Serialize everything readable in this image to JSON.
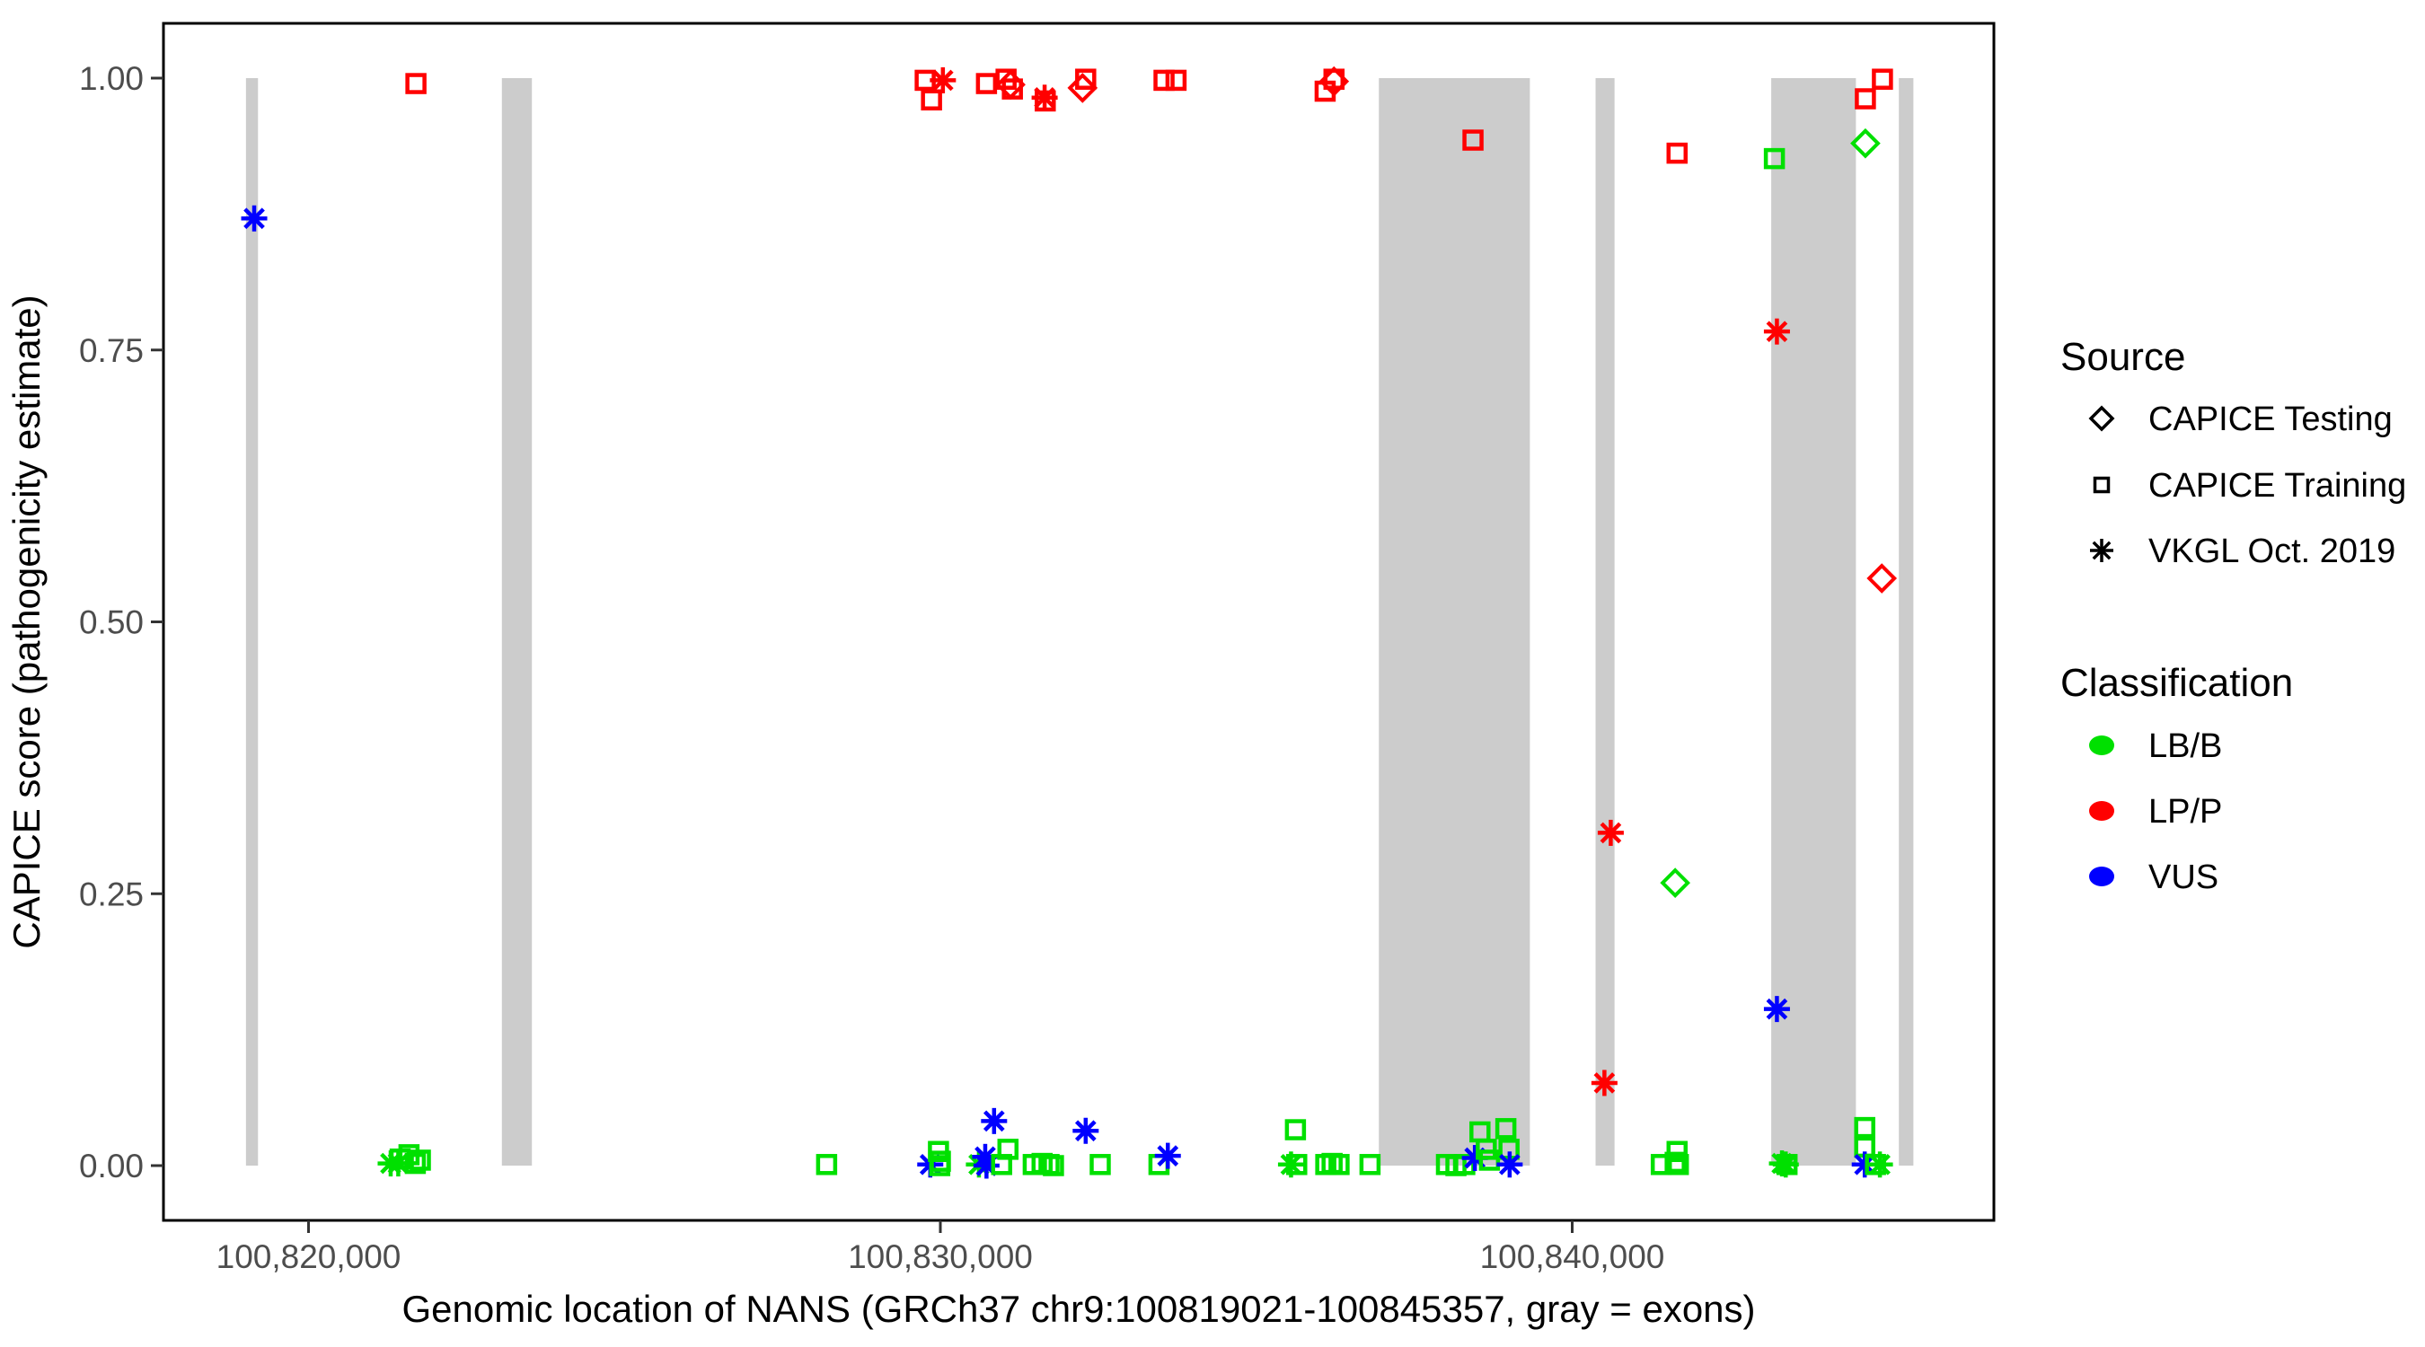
{
  "figure": {
    "description": "Scatter plot of CAPICE pathogenicity scores across the NANS gene"
  },
  "legend": {
    "source_title": "Source",
    "source_items": [
      {
        "code": "test",
        "label": "CAPICE Testing",
        "marker": "diamond-icon"
      },
      {
        "code": "train",
        "label": "CAPICE Training",
        "marker": "square-icon"
      },
      {
        "code": "vkgl",
        "label": "VKGL Oct. 2019",
        "marker": "asterisk-icon"
      }
    ],
    "classification_title": "Classification",
    "classification_items": [
      {
        "label": "LB/B",
        "color": "#00e000"
      },
      {
        "label": "LP/P",
        "color": "#ff0000"
      },
      {
        "label": "VUS",
        "color": "#0000ff"
      }
    ]
  },
  "chart_data": {
    "type": "scatter",
    "title": "",
    "xlabel": "Genomic location of NANS (GRCh37 chr9:100819021-100845357, gray = exons)",
    "ylabel": "CAPICE score (pathogenicity estimate)",
    "xlim": [
      100817704,
      100846674
    ],
    "ylim": [
      -0.05,
      1.05
    ],
    "grid": false,
    "legend_position": "right",
    "x_ticks": [
      {
        "value": 100820000,
        "label": "100,820,000"
      },
      {
        "value": 100830000,
        "label": "100,830,000"
      },
      {
        "value": 100840000,
        "label": "100,840,000"
      }
    ],
    "y_ticks": [
      {
        "value": 0.0,
        "label": "0.00"
      },
      {
        "value": 0.25,
        "label": "0.25"
      },
      {
        "value": 0.5,
        "label": "0.50"
      },
      {
        "value": 0.75,
        "label": "0.75"
      },
      {
        "value": 1.0,
        "label": "1.00"
      }
    ],
    "exon_color": "#cccccc",
    "exons": [
      [
        100819010,
        100819200
      ],
      [
        100823060,
        100823535
      ],
      [
        100836940,
        100839330
      ],
      [
        100840370,
        100840670
      ],
      [
        100843150,
        100844490
      ],
      [
        100845170,
        100845400
      ]
    ],
    "point_format": [
      "genomic_position",
      "capice_score",
      "source",
      "classification"
    ],
    "points": [
      [
        100819140,
        0.871,
        "vkgl",
        "VUS"
      ],
      [
        100821700,
        0.995,
        "train",
        "LP/P"
      ],
      [
        100821300,
        0.002,
        "vkgl",
        "LB/B"
      ],
      [
        100821420,
        0.002,
        "vkgl",
        "LB/B"
      ],
      [
        100821450,
        0.006,
        "train",
        "LB/B"
      ],
      [
        100821590,
        0.01,
        "train",
        "LB/B"
      ],
      [
        100821690,
        0.002,
        "train",
        "LB/B"
      ],
      [
        100821770,
        0.005,
        "train",
        "LB/B"
      ],
      [
        100828200,
        0.001,
        "train",
        "LB/B"
      ],
      [
        100829760,
        0.998,
        "train",
        "LP/P"
      ],
      [
        100829860,
        0.98,
        "train",
        "LP/P"
      ],
      [
        100830040,
        0.998,
        "vkgl",
        "LP/P"
      ],
      [
        100830730,
        0.995,
        "train",
        "LP/P"
      ],
      [
        100831040,
        0.999,
        "train",
        "LP/P"
      ],
      [
        100831110,
        0.994,
        "test",
        "LP/P"
      ],
      [
        100831140,
        0.99,
        "train",
        "LP/P"
      ],
      [
        100831650,
        0.982,
        "vkgl",
        "LP/P"
      ],
      [
        100831660,
        0.979,
        "train",
        "LP/P"
      ],
      [
        100832250,
        0.991,
        "test",
        "LP/P"
      ],
      [
        100832300,
        0.999,
        "train",
        "LP/P"
      ],
      [
        100833540,
        0.998,
        "train",
        "LP/P"
      ],
      [
        100833730,
        0.998,
        "train",
        "LP/P"
      ],
      [
        100836090,
        0.988,
        "train",
        "LP/P"
      ],
      [
        100836230,
        0.999,
        "train",
        "LP/P"
      ],
      [
        100836230,
        0.997,
        "test",
        "LP/P"
      ],
      [
        100838430,
        0.943,
        "train",
        "LP/P"
      ],
      [
        100841660,
        0.931,
        "train",
        "LP/P"
      ],
      [
        100843200,
        0.926,
        "train",
        "LB/B"
      ],
      [
        100843240,
        0.767,
        "vkgl",
        "LP/P"
      ],
      [
        100844640,
        0.94,
        "test",
        "LB/B"
      ],
      [
        100844640,
        0.981,
        "train",
        "LP/P"
      ],
      [
        100844910,
        0.999,
        "train",
        "LP/P"
      ],
      [
        100844900,
        0.54,
        "test",
        "LP/P"
      ],
      [
        100840610,
        0.306,
        "vkgl",
        "LP/P"
      ],
      [
        100841630,
        0.26,
        "test",
        "LB/B"
      ],
      [
        100843240,
        0.144,
        "vkgl",
        "VUS"
      ],
      [
        100840510,
        0.076,
        "vkgl",
        "LP/P"
      ],
      [
        100829840,
        0.001,
        "vkgl",
        "VUS"
      ],
      [
        100829970,
        0.013,
        "train",
        "LB/B"
      ],
      [
        100830000,
        0.004,
        "train",
        "LB/B"
      ],
      [
        100829990,
        0.0,
        "train",
        "LB/B"
      ],
      [
        100830610,
        0.001,
        "vkgl",
        "LB/B"
      ],
      [
        100830710,
        0.008,
        "vkgl",
        "VUS"
      ],
      [
        100830730,
        0.0,
        "vkgl",
        "VUS"
      ],
      [
        100830970,
        0.001,
        "train",
        "LB/B"
      ],
      [
        100831070,
        0.015,
        "train",
        "LB/B"
      ],
      [
        100830850,
        0.041,
        "vkgl",
        "VUS"
      ],
      [
        100831470,
        0.001,
        "train",
        "LB/B"
      ],
      [
        100831610,
        0.002,
        "train",
        "LB/B"
      ],
      [
        100831720,
        0.001,
        "train",
        "LB/B"
      ],
      [
        100831790,
        0.0,
        "train",
        "LB/B"
      ],
      [
        100832300,
        0.032,
        "vkgl",
        "VUS"
      ],
      [
        100832530,
        0.001,
        "train",
        "LB/B"
      ],
      [
        100833460,
        0.001,
        "train",
        "LB/B"
      ],
      [
        100833600,
        0.009,
        "vkgl",
        "VUS"
      ],
      [
        100835550,
        0.001,
        "vkgl",
        "LB/B"
      ],
      [
        100835620,
        0.033,
        "train",
        "LB/B"
      ],
      [
        100835640,
        0.001,
        "train",
        "LB/B"
      ],
      [
        100836100,
        0.001,
        "train",
        "LB/B"
      ],
      [
        100836200,
        0.002,
        "train",
        "LB/B"
      ],
      [
        100836310,
        0.001,
        "train",
        "LB/B"
      ],
      [
        100836800,
        0.001,
        "train",
        "LB/B"
      ],
      [
        100838010,
        0.001,
        "train",
        "LB/B"
      ],
      [
        100838160,
        0.0,
        "train",
        "LB/B"
      ],
      [
        100838300,
        0.001,
        "train",
        "LB/B"
      ],
      [
        100838460,
        0.007,
        "vkgl",
        "VUS"
      ],
      [
        100838540,
        0.031,
        "train",
        "LB/B"
      ],
      [
        100838640,
        0.015,
        "train",
        "LB/B"
      ],
      [
        100838690,
        0.005,
        "train",
        "LB/B"
      ],
      [
        100838950,
        0.034,
        "train",
        "LB/B"
      ],
      [
        100839000,
        0.015,
        "train",
        "LB/B"
      ],
      [
        100839010,
        0.001,
        "vkgl",
        "VUS"
      ],
      [
        100841410,
        0.001,
        "train",
        "LB/B"
      ],
      [
        100841630,
        0.003,
        "train",
        "LB/B"
      ],
      [
        100841660,
        0.013,
        "train",
        "LB/B"
      ],
      [
        100841680,
        0.001,
        "train",
        "LB/B"
      ],
      [
        100843320,
        0.002,
        "vkgl",
        "LB/B"
      ],
      [
        100843380,
        0.001,
        "vkgl",
        "LB/B"
      ],
      [
        100843400,
        0.001,
        "train",
        "LB/B"
      ],
      [
        100844630,
        0.035,
        "train",
        "LB/B"
      ],
      [
        100844630,
        0.017,
        "train",
        "LB/B"
      ],
      [
        100844630,
        0.001,
        "vkgl",
        "VUS"
      ],
      [
        100844800,
        0.001,
        "train",
        "LB/B"
      ],
      [
        100844870,
        0.001,
        "vkgl",
        "LB/B"
      ]
    ]
  }
}
